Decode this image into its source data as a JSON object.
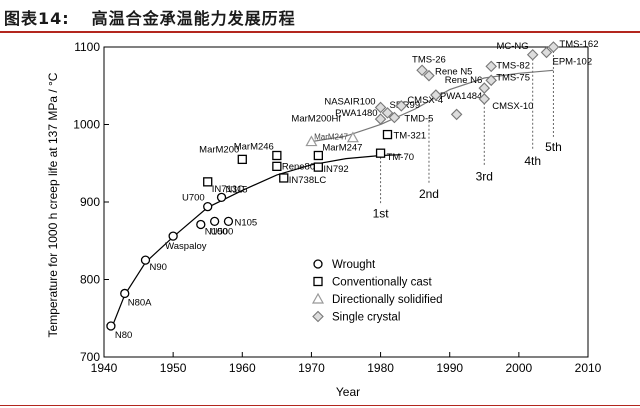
{
  "header": {
    "figure_label": "图表14:",
    "figure_title": "高温合金承温能力发展历程"
  },
  "chart_data": {
    "type": "scatter",
    "title": "",
    "xlabel": "Year",
    "ylabel": "Temperature for 1000 h creep life at 137 MPa / °C",
    "xlim": [
      1940,
      2010
    ],
    "ylim": [
      700,
      1100
    ],
    "xticks": [
      1940,
      1950,
      1960,
      1970,
      1980,
      1990,
      2000,
      2010
    ],
    "yticks": [
      700,
      800,
      900,
      1000,
      1100
    ],
    "grid": false,
    "legend_position": "lower-center",
    "legend": [
      {
        "marker": "circle",
        "label": "Wrought"
      },
      {
        "marker": "square",
        "label": "Conventionally cast"
      },
      {
        "marker": "triangle",
        "label": "Directionally solidified"
      },
      {
        "marker": "diamond",
        "label": "Single crystal"
      }
    ],
    "points": [
      {
        "name": "N80",
        "x": 1941,
        "y": 740,
        "marker": "circle"
      },
      {
        "name": "N80A",
        "x": 1943,
        "y": 782,
        "marker": "circle"
      },
      {
        "name": "N90",
        "x": 1946,
        "y": 825,
        "marker": "circle"
      },
      {
        "name": "Waspaloy",
        "x": 1950,
        "y": 856,
        "marker": "circle"
      },
      {
        "name": "N100",
        "x": 1954,
        "y": 871,
        "marker": "circle"
      },
      {
        "name": "U500",
        "x": 1956,
        "y": 875,
        "marker": "circle"
      },
      {
        "name": "N105",
        "x": 1958,
        "y": 875,
        "marker": "circle"
      },
      {
        "name": "U700",
        "x": 1955,
        "y": 894,
        "marker": "circle"
      },
      {
        "name": "N115",
        "x": 1957,
        "y": 906,
        "marker": "circle"
      },
      {
        "name": "IN713C",
        "x": 1955,
        "y": 926,
        "marker": "square"
      },
      {
        "name": "MarM200",
        "x": 1960,
        "y": 955,
        "marker": "square"
      },
      {
        "name": "MarM246",
        "x": 1965,
        "y": 960,
        "marker": "square"
      },
      {
        "name": "Rene80",
        "x": 1965,
        "y": 946,
        "marker": "square"
      },
      {
        "name": "IN738LC",
        "x": 1966,
        "y": 931,
        "marker": "square"
      },
      {
        "name": "MarM247",
        "x": 1971,
        "y": 960,
        "marker": "square"
      },
      {
        "name": "IN792",
        "x": 1971,
        "y": 945,
        "marker": "square"
      },
      {
        "name": "TM-321",
        "x": 1981,
        "y": 987,
        "marker": "square"
      },
      {
        "name": "TM-70",
        "x": 1980,
        "y": 963,
        "marker": "square"
      },
      {
        "name": "MarM200Hf",
        "x": 1970,
        "y": 978,
        "marker": "triangle"
      },
      {
        "name": "MarM247",
        "x": 1976,
        "y": 983,
        "marker": "triangle"
      },
      {
        "name": "PWA1480",
        "x": 1980,
        "y": 1007,
        "marker": "diamond"
      },
      {
        "name": "NASAIR100",
        "x": 1980,
        "y": 1022,
        "marker": "diamond"
      },
      {
        "name": "SRR99",
        "x": 1981,
        "y": 1015,
        "marker": "diamond"
      },
      {
        "name": "CMSX-4",
        "x": 1983,
        "y": 1024,
        "marker": "diamond"
      },
      {
        "name": "TMD-5",
        "x": 1982,
        "y": 1009,
        "marker": "diamond"
      },
      {
        "name": "TMS-26",
        "x": 1986,
        "y": 1070,
        "marker": "diamond"
      },
      {
        "name": "Rene N5",
        "x": 1987,
        "y": 1063,
        "marker": "diamond"
      },
      {
        "name": "Rene N6",
        "x": 1995,
        "y": 1047,
        "marker": "diamond"
      },
      {
        "name": "PWA1484",
        "x": 1988,
        "y": 1038,
        "marker": "diamond"
      },
      {
        "name": "",
        "x": 1991,
        "y": 1013,
        "marker": "diamond"
      },
      {
        "name": "CMSX-10",
        "x": 1995,
        "y": 1033,
        "marker": "diamond"
      },
      {
        "name": "TMS-75",
        "x": 1996,
        "y": 1057,
        "marker": "diamond"
      },
      {
        "name": "TMS-82",
        "x": 1996,
        "y": 1075,
        "marker": "diamond"
      },
      {
        "name": "MC-NG",
        "x": 2002,
        "y": 1090,
        "marker": "diamond"
      },
      {
        "name": "TMS-162",
        "x": 2005,
        "y": 1100,
        "marker": "diamond"
      },
      {
        "name": "EPM-102",
        "x": 2004,
        "y": 1093,
        "marker": "diamond"
      }
    ],
    "generations": [
      {
        "label": "1st",
        "x": 1980,
        "y_top": 963,
        "y_label": 880
      },
      {
        "label": "2nd",
        "x": 1987,
        "y_top": 1010,
        "y_label": 905
      },
      {
        "label": "3rd",
        "x": 1995,
        "y_top": 1033,
        "y_label": 928
      },
      {
        "label": "4th",
        "x": 2002,
        "y_top": 1090,
        "y_label": 948
      },
      {
        "label": "5th",
        "x": 2005,
        "y_top": 1100,
        "y_label": 966
      }
    ]
  }
}
